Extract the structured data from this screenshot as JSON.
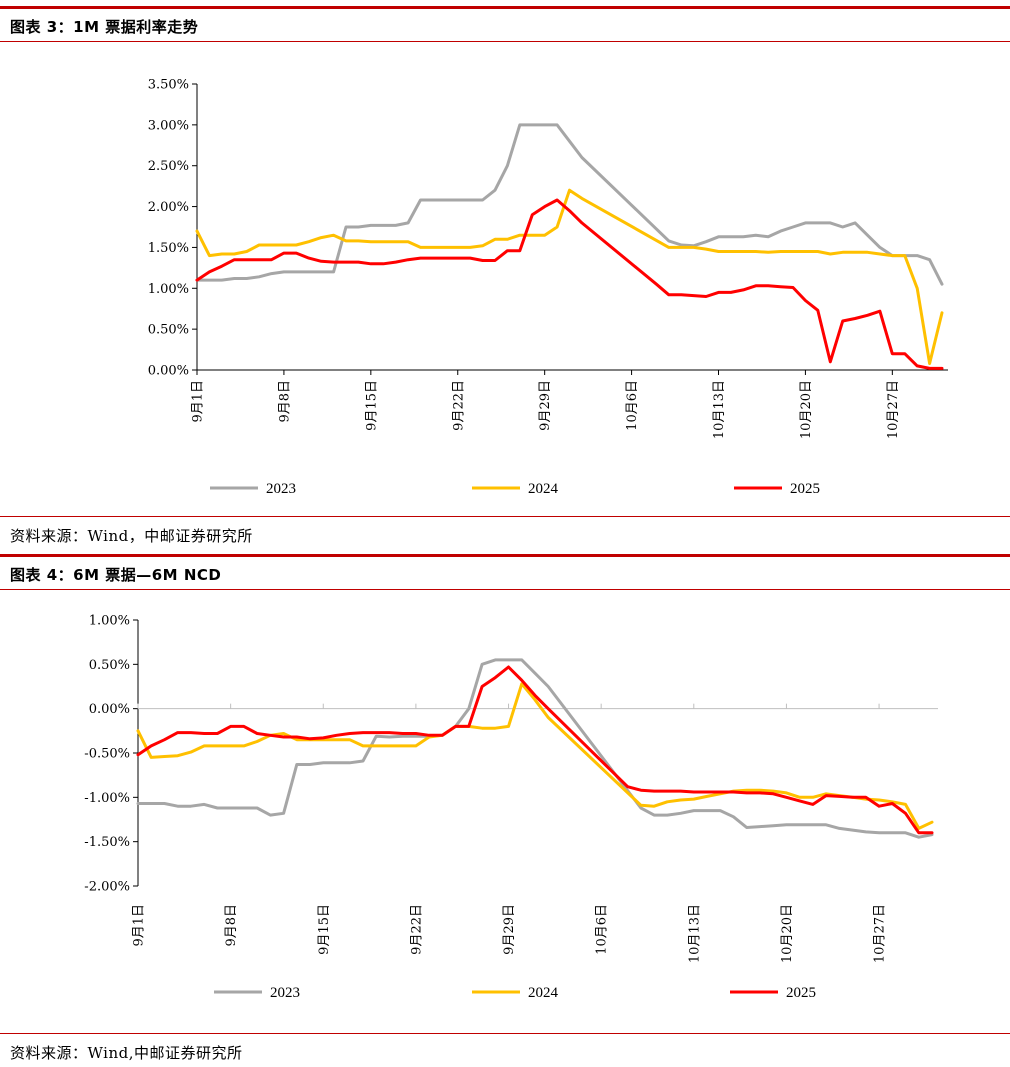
{
  "figure3": {
    "header": "图表 3：1M 票据利率走势",
    "source": "资料来源：Wind，中邮证券研究所",
    "chart_data": {
      "type": "line",
      "title": "1M 票据利率走势",
      "x_labels": [
        "9月1日",
        "9月8日",
        "9月15日",
        "9月22日",
        "9月29日",
        "10月6日",
        "10月13日",
        "10月20日",
        "10月27日"
      ],
      "x_range": [
        1,
        61
      ],
      "ylim": [
        0,
        3.5
      ],
      "y_ticks": [
        0,
        0.5,
        1.0,
        1.5,
        2.0,
        2.5,
        3.0,
        3.5
      ],
      "y_tick_labels": [
        "0.00%",
        "0.50%",
        "1.00%",
        "1.50%",
        "2.00%",
        "2.50%",
        "3.00%",
        "3.50%"
      ],
      "legend_position": "bottom",
      "series": [
        {
          "name": "2023",
          "color": "#a6a6a6",
          "x": [
            1,
            2,
            3,
            4,
            5,
            6,
            7,
            8,
            9,
            10,
            11,
            12,
            13,
            14,
            15,
            16,
            17,
            18,
            19,
            20,
            21,
            22,
            23,
            24,
            25,
            26,
            27,
            28,
            29,
            30,
            31,
            32,
            39,
            40,
            41,
            42,
            43,
            44,
            45,
            46,
            47,
            48,
            49,
            50,
            51,
            52,
            53,
            54,
            55,
            56,
            57,
            58,
            59,
            60,
            61
          ],
          "values": [
            1.1,
            1.1,
            1.1,
            1.12,
            1.12,
            1.14,
            1.18,
            1.2,
            1.2,
            1.2,
            1.2,
            1.2,
            1.75,
            1.75,
            1.77,
            1.77,
            1.77,
            1.8,
            2.08,
            2.08,
            2.08,
            2.08,
            2.08,
            2.08,
            2.2,
            2.5,
            3.0,
            3.0,
            3.0,
            3.0,
            2.8,
            2.6,
            1.58,
            1.53,
            1.52,
            1.57,
            1.63,
            1.63,
            1.63,
            1.65,
            1.63,
            1.7,
            1.75,
            1.8,
            1.8,
            1.8,
            1.75,
            1.8,
            1.65,
            1.5,
            1.4,
            1.4,
            1.4,
            1.35,
            1.05
          ]
        },
        {
          "name": "2024",
          "color": "#ffc000",
          "x": [
            1,
            2,
            3,
            4,
            5,
            6,
            7,
            8,
            9,
            10,
            11,
            12,
            13,
            14,
            15,
            16,
            17,
            18,
            19,
            20,
            21,
            22,
            23,
            24,
            25,
            26,
            27,
            28,
            29,
            30,
            31,
            32,
            39,
            40,
            41,
            42,
            43,
            44,
            45,
            46,
            47,
            48,
            49,
            50,
            51,
            52,
            53,
            54,
            55,
            56,
            57,
            58,
            59,
            60,
            61
          ],
          "values": [
            1.7,
            1.4,
            1.42,
            1.42,
            1.45,
            1.53,
            1.53,
            1.53,
            1.53,
            1.57,
            1.62,
            1.65,
            1.58,
            1.58,
            1.57,
            1.57,
            1.57,
            1.57,
            1.5,
            1.5,
            1.5,
            1.5,
            1.5,
            1.52,
            1.6,
            1.6,
            1.65,
            1.65,
            1.65,
            1.75,
            2.2,
            2.1,
            1.5,
            1.5,
            1.5,
            1.48,
            1.45,
            1.45,
            1.45,
            1.45,
            1.44,
            1.45,
            1.45,
            1.45,
            1.45,
            1.42,
            1.44,
            1.44,
            1.44,
            1.42,
            1.4,
            1.4,
            1.0,
            0.08,
            0.7
          ]
        },
        {
          "name": "2025",
          "color": "#ff0000",
          "x": [
            1,
            2,
            3,
            4,
            5,
            6,
            7,
            8,
            9,
            10,
            11,
            12,
            13,
            14,
            15,
            16,
            17,
            18,
            19,
            20,
            21,
            22,
            23,
            24,
            25,
            26,
            27,
            28,
            29,
            30,
            31,
            32,
            38,
            39,
            40,
            41,
            42,
            43,
            44,
            45,
            46,
            47,
            48,
            49,
            50,
            51,
            52,
            53,
            54,
            55,
            56,
            57,
            58,
            59,
            60,
            61
          ],
          "values": [
            1.1,
            1.2,
            1.27,
            1.35,
            1.35,
            1.35,
            1.35,
            1.43,
            1.43,
            1.37,
            1.33,
            1.32,
            1.32,
            1.32,
            1.3,
            1.3,
            1.32,
            1.35,
            1.37,
            1.37,
            1.37,
            1.37,
            1.37,
            1.34,
            1.34,
            1.46,
            1.46,
            1.9,
            2.0,
            2.08,
            1.95,
            1.8,
            1.05,
            0.92,
            0.92,
            0.91,
            0.9,
            0.95,
            0.95,
            0.98,
            1.03,
            1.03,
            1.02,
            1.01,
            0.85,
            0.73,
            0.1,
            0.6,
            0.63,
            0.67,
            0.72,
            0.2,
            0.2,
            0.05,
            0.02,
            0.02
          ]
        }
      ]
    }
  },
  "figure4": {
    "header": "图表 4：6M 票据—6M NCD",
    "source": "资料来源：Wind,中邮证券研究所",
    "chart_data": {
      "type": "line",
      "title": "6M 票据—6M NCD",
      "x_labels": [
        "9月1日",
        "9月8日",
        "9月15日",
        "9月22日",
        "9月29日",
        "10月6日",
        "10月13日",
        "10月20日",
        "10月27日"
      ],
      "x_range": [
        1,
        61
      ],
      "ylim": [
        -2.0,
        1.0
      ],
      "y_ticks": [
        -2.0,
        -1.5,
        -1.0,
        -0.5,
        0,
        0.5,
        1.0
      ],
      "y_tick_labels": [
        "-2.00%",
        "-1.50%",
        "-1.00%",
        "-0.50%",
        "0.00%",
        "0.50%",
        "1.00%"
      ],
      "legend_position": "bottom",
      "series": [
        {
          "name": "2023",
          "color": "#a6a6a6",
          "x": [
            1,
            2,
            3,
            4,
            5,
            6,
            7,
            8,
            9,
            10,
            11,
            12,
            13,
            14,
            15,
            16,
            17,
            18,
            19,
            20,
            21,
            22,
            23,
            24,
            25,
            26,
            27,
            28,
            29,
            30,
            31,
            32,
            39,
            40,
            41,
            42,
            43,
            44,
            45,
            46,
            47,
            48,
            49,
            50,
            51,
            52,
            53,
            54,
            55,
            56,
            57,
            58,
            59,
            60,
            61
          ],
          "values": [
            -1.07,
            -1.07,
            -1.07,
            -1.1,
            -1.1,
            -1.08,
            -1.12,
            -1.12,
            -1.12,
            -1.12,
            -1.2,
            -1.18,
            -0.63,
            -0.63,
            -0.61,
            -0.61,
            -0.61,
            -0.59,
            -0.31,
            -0.32,
            -0.31,
            -0.31,
            -0.31,
            -0.3,
            -0.2,
            0.0,
            0.5,
            0.55,
            0.55,
            0.55,
            0.4,
            0.25,
            -1.12,
            -1.2,
            -1.2,
            -1.18,
            -1.15,
            -1.15,
            -1.15,
            -1.22,
            -1.34,
            -1.33,
            -1.32,
            -1.31,
            -1.31,
            -1.31,
            -1.31,
            -1.35,
            -1.37,
            -1.39,
            -1.4,
            -1.4,
            -1.4,
            -1.45,
            -1.42
          ]
        },
        {
          "name": "2024",
          "color": "#ffc000",
          "x": [
            1,
            2,
            3,
            4,
            5,
            6,
            7,
            8,
            9,
            10,
            11,
            12,
            13,
            14,
            15,
            16,
            17,
            18,
            19,
            20,
            21,
            22,
            23,
            24,
            25,
            26,
            27,
            28,
            29,
            30,
            31,
            32,
            39,
            40,
            41,
            42,
            43,
            44,
            45,
            46,
            47,
            48,
            49,
            50,
            51,
            52,
            53,
            54,
            55,
            56,
            57,
            58,
            59,
            60,
            61
          ],
          "values": [
            -0.25,
            -0.55,
            -0.54,
            -0.53,
            -0.49,
            -0.42,
            -0.42,
            -0.42,
            -0.42,
            -0.37,
            -0.3,
            -0.28,
            -0.35,
            -0.35,
            -0.35,
            -0.35,
            -0.35,
            -0.42,
            -0.42,
            -0.42,
            -0.42,
            -0.42,
            -0.32,
            -0.3,
            -0.2,
            -0.2,
            -0.22,
            -0.22,
            -0.2,
            0.28,
            0.1,
            -0.1,
            -1.09,
            -1.1,
            -1.05,
            -1.03,
            -1.02,
            -0.99,
            -0.96,
            -0.93,
            -0.92,
            -0.92,
            -0.93,
            -0.95,
            -1.0,
            -1.0,
            -0.96,
            -0.98,
            -1.0,
            -1.02,
            -1.03,
            -1.05,
            -1.08,
            -1.35,
            -1.28
          ]
        },
        {
          "name": "2025",
          "color": "#ff0000",
          "x": [
            1,
            2,
            3,
            4,
            5,
            6,
            7,
            8,
            9,
            10,
            11,
            12,
            13,
            14,
            15,
            16,
            17,
            18,
            19,
            20,
            21,
            22,
            23,
            24,
            25,
            26,
            27,
            28,
            29,
            30,
            31,
            32,
            38,
            39,
            40,
            41,
            42,
            43,
            44,
            45,
            46,
            47,
            48,
            49,
            50,
            51,
            52,
            53,
            54,
            55,
            56,
            57,
            58,
            59,
            60,
            61
          ],
          "values": [
            -0.52,
            -0.42,
            -0.35,
            -0.27,
            -0.27,
            -0.28,
            -0.28,
            -0.2,
            -0.2,
            -0.28,
            -0.3,
            -0.32,
            -0.32,
            -0.34,
            -0.33,
            -0.3,
            -0.28,
            -0.27,
            -0.27,
            -0.27,
            -0.28,
            -0.28,
            -0.3,
            -0.3,
            -0.2,
            -0.2,
            0.25,
            0.35,
            0.47,
            0.32,
            0.15,
            0.0,
            -0.88,
            -0.92,
            -0.93,
            -0.93,
            -0.93,
            -0.94,
            -0.94,
            -0.94,
            -0.94,
            -0.95,
            -0.95,
            -0.96,
            -1.0,
            -1.04,
            -1.08,
            -0.98,
            -0.99,
            -1.0,
            -1.0,
            -1.1,
            -1.07,
            -1.18,
            -1.4,
            -1.4
          ]
        }
      ]
    }
  }
}
